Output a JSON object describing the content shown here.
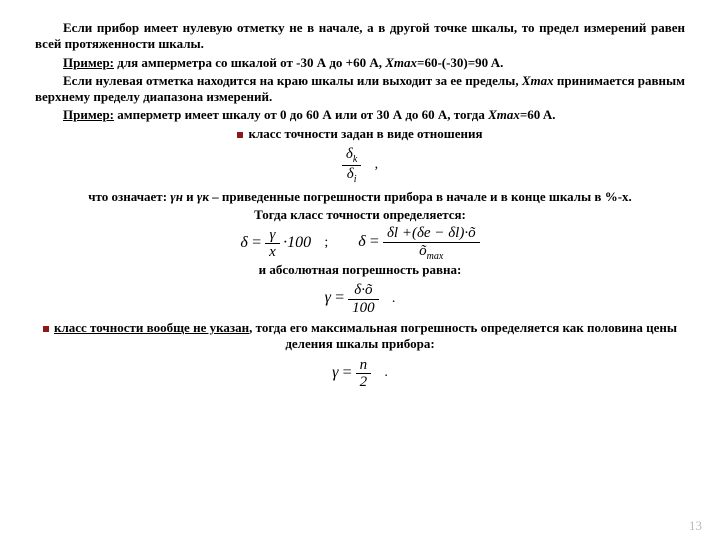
{
  "p1": "Если прибор имеет нулевую отметку не в начале, а в другой точке шкалы, то предел измерений равен всей протяженности шкалы.",
  "p2a": "Пример:",
  "p2b": " для амперметра со шкалой от -30 А до +60 А, ",
  "p2c": "Xmax",
  "p2d": "=60-(-30)=90 A.",
  "p3a": "Если нулевая отметка находится на краю шкалы или выходит за ее пределы, ",
  "p3b": "Xmax",
  "p3c": " принимается равным верхнему пределу диапазона измерений.",
  "p4a": "Пример:",
  "p4b": " амперметр имеет шкалу от 0 до 60 А или от 30 А до 60 А, тогда ",
  "p4c": "Xmax",
  "p4d": "=60 A.",
  "bullet1": "класс точности задан в виде отношения",
  "f1": {
    "num": "δ",
    "numsub": "k",
    "den": "δ",
    "densub": "i"
  },
  "p5a": "что означает: ",
  "p5b": "γн",
  "p5c": " и ",
  "p5d": "γк",
  "p5e": " – приведенные погрешности прибора в начале и в конце шкалы в %-х.",
  "p6": "Тогда класс точности определяется:",
  "f2": {
    "lhs": "δ",
    "eq": "=",
    "n1": "γ",
    "d1": "x",
    "mul": "·100"
  },
  "f3": {
    "lhs": "δ",
    "eq": "=",
    "num": "δl +(δe − δl)·õ",
    "den": "õ",
    "densub": "max"
  },
  "p7": "и абсолютная погрешность равна:",
  "f4": {
    "lhs": "γ",
    "eq": "=",
    "num": "δ·õ",
    "den": "100"
  },
  "bullet2a": "класс точности вообще не указан",
  "bullet2b": ", тогда его максимальная погрешность определяется как половина цены деления шкалы прибора:",
  "f5": {
    "lhs": "γ",
    "eq": "=",
    "num": "n",
    "den": "2"
  },
  "pagenum": "13"
}
